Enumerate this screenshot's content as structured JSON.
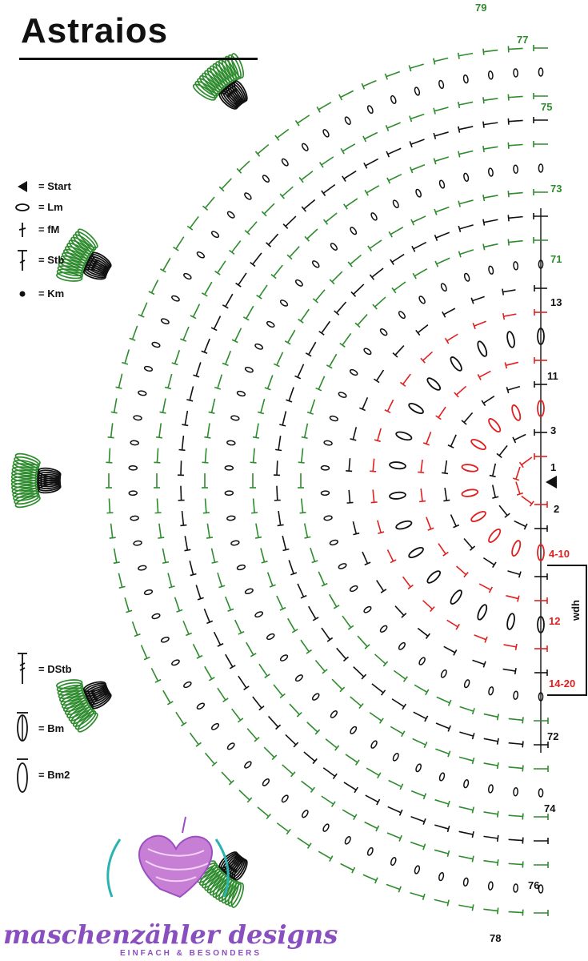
{
  "title": "Astraios",
  "legend_top": [
    {
      "symbol": "start-icon",
      "label": "= Start"
    },
    {
      "symbol": "chain-oval-icon",
      "label": "= Lm"
    },
    {
      "symbol": "single-crochet-icon",
      "label": "= fM"
    },
    {
      "symbol": "double-crochet-icon",
      "label": "= Stb"
    },
    {
      "symbol": "slip-stitch-icon",
      "label": "= Km"
    }
  ],
  "legend_bottom": [
    {
      "symbol": "treble-crochet-icon",
      "label": "= DStb"
    },
    {
      "symbol": "bobble-icon",
      "label": "= Bm"
    },
    {
      "symbol": "bobble2-icon",
      "label": "= Bm2"
    }
  ],
  "round_labels": {
    "r79": "79",
    "r77": "77",
    "r75": "75",
    "r73": "73",
    "r71": "71",
    "r13": "13",
    "r11": "11",
    "r3": "3",
    "r1": "1",
    "r2": "2",
    "r4_10": "4-10",
    "r12": "12",
    "r14_20": "14-20",
    "r72": "72",
    "r74": "74",
    "r76": "76",
    "r78": "78"
  },
  "repeat_label": "wdh",
  "logo": {
    "name": "maschenzähler designs",
    "tagline": "EINFACH & BESONDERS"
  },
  "colors": {
    "green": "#2e8b2e",
    "black": "#111111",
    "red": "#e02020",
    "logo": "#8a4fbf",
    "teal": "#2bb3b1"
  }
}
